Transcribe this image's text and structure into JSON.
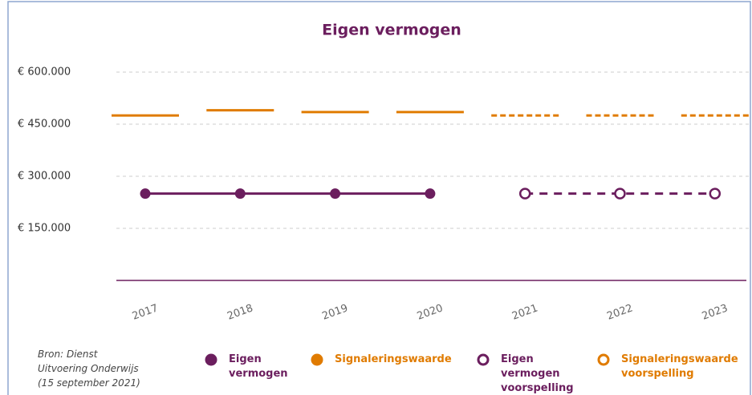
{
  "chart_data": {
    "type": "line",
    "title": "Eigen vermogen",
    "categories": [
      "2017",
      "2018",
      "2019",
      "2020",
      "2021",
      "2022",
      "2023"
    ],
    "ylim": [
      0,
      600000
    ],
    "yticks": [
      {
        "value": 150000,
        "label": "€ 150.000"
      },
      {
        "value": 300000,
        "label": "€ 300.000"
      },
      {
        "value": 450000,
        "label": "€ 450.000"
      },
      {
        "value": 600000,
        "label": "€ 600.000"
      }
    ],
    "grid": true,
    "legend": "bottom",
    "source": "Bron: Dienst Uitvoering Onderwijs (15 september 2021)",
    "series": [
      {
        "name": "Eigen vermogen",
        "color": "#6b1e5e",
        "style": "line",
        "dashed": false,
        "marker": "filled",
        "values": [
          250000,
          250000,
          250000,
          250000,
          null,
          null,
          null
        ]
      },
      {
        "name": "Signaleringswaarde",
        "color": "#e07b00",
        "style": "level",
        "dashed": false,
        "marker": "filled",
        "values": [
          475000,
          490000,
          485000,
          485000,
          null,
          null,
          null
        ]
      },
      {
        "name": "Eigen vermogen voorspelling",
        "color": "#6b1e5e",
        "style": "line",
        "dashed": true,
        "marker": "open",
        "values": [
          null,
          null,
          null,
          null,
          250000,
          250000,
          250000
        ]
      },
      {
        "name": "Signaleringswaarde voorspelling",
        "color": "#e07b00",
        "style": "level",
        "dashed": true,
        "marker": "open",
        "values": [
          null,
          null,
          null,
          null,
          475000,
          475000,
          475000
        ]
      }
    ]
  }
}
